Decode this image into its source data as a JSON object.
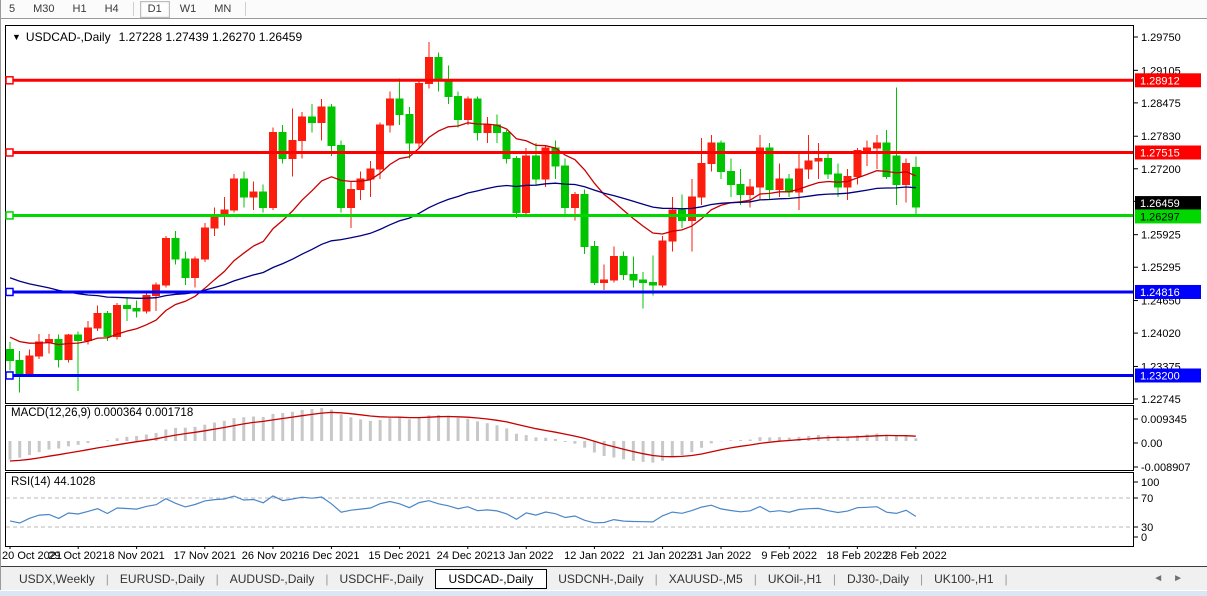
{
  "toolbar": {
    "groups": [
      [
        "5",
        "M30",
        "H1",
        "H4"
      ],
      [
        "D1",
        "W1",
        "MN"
      ]
    ],
    "active": "D1"
  },
  "chart": {
    "dropdown_icon": "▼",
    "title": "USDCAD-,Daily",
    "ohlc_values": "1.27228 1.27439 1.26270 1.26459"
  },
  "chart_data": {
    "type": "candlestick",
    "symbol": "USDCAD-",
    "timeframe": "Daily",
    "title": "USDCAD-,Daily 1.27228 1.27439 1.26270 1.26459",
    "current_bar": {
      "open": 1.27228,
      "high": 1.27439,
      "low": 1.2627,
      "close": 1.26459
    },
    "up_color": "#fb1d0e",
    "down_color": "#00c400",
    "candles": [
      [
        1.237,
        1.2385,
        1.233,
        1.2349
      ],
      [
        1.2349,
        1.2367,
        1.2287,
        1.2323
      ],
      [
        1.2323,
        1.237,
        1.232,
        1.2358
      ],
      [
        1.2358,
        1.24,
        1.2352,
        1.2385
      ],
      [
        1.2385,
        1.24,
        1.2363,
        1.239
      ],
      [
        1.239,
        1.2399,
        1.2335,
        1.2351
      ],
      [
        1.2351,
        1.24,
        1.2345,
        1.2398
      ],
      [
        1.2398,
        1.2405,
        1.229,
        1.2388
      ],
      [
        1.2388,
        1.2425,
        1.238,
        1.2412
      ],
      [
        1.2412,
        1.2455,
        1.2406,
        1.244
      ],
      [
        1.244,
        1.2445,
        1.2387,
        1.2395
      ],
      [
        1.2395,
        1.246,
        1.239,
        1.2455
      ],
      [
        1.2455,
        1.247,
        1.2425,
        1.245
      ],
      [
        1.245,
        1.2465,
        1.2432,
        1.2445
      ],
      [
        1.2445,
        1.248,
        1.244,
        1.2475
      ],
      [
        1.2475,
        1.25,
        1.2445,
        1.2495
      ],
      [
        1.2495,
        1.259,
        1.249,
        1.2585
      ],
      [
        1.2585,
        1.26,
        1.2535,
        1.2545
      ],
      [
        1.2545,
        1.256,
        1.2495,
        1.251
      ],
      [
        1.251,
        1.255,
        1.249,
        1.2545
      ],
      [
        1.2545,
        1.2615,
        1.254,
        1.2605
      ],
      [
        1.2605,
        1.2645,
        1.259,
        1.263
      ],
      [
        1.263,
        1.2665,
        1.261,
        1.264
      ],
      [
        1.264,
        1.271,
        1.2635,
        1.27
      ],
      [
        1.27,
        1.2715,
        1.2645,
        1.2665
      ],
      [
        1.2665,
        1.2695,
        1.264,
        1.2675
      ],
      [
        1.2675,
        1.269,
        1.2635,
        1.2645
      ],
      [
        1.2645,
        1.28,
        1.264,
        1.279
      ],
      [
        1.279,
        1.2805,
        1.273,
        1.274
      ],
      [
        1.274,
        1.2837,
        1.2705,
        1.2775
      ],
      [
        1.2775,
        1.283,
        1.274,
        1.282
      ],
      [
        1.282,
        1.2845,
        1.279,
        1.281
      ],
      [
        1.281,
        1.2855,
        1.2775,
        1.284
      ],
      [
        1.284,
        1.2845,
        1.2745,
        1.2765
      ],
      [
        1.2765,
        1.2775,
        1.2635,
        1.2645
      ],
      [
        1.2645,
        1.2695,
        1.2605,
        1.268
      ],
      [
        1.268,
        1.2715,
        1.266,
        1.27
      ],
      [
        1.27,
        1.2735,
        1.2665,
        1.272
      ],
      [
        1.272,
        1.281,
        1.27,
        1.2805
      ],
      [
        1.2805,
        1.287,
        1.279,
        1.2855
      ],
      [
        1.2855,
        1.2895,
        1.2805,
        1.2825
      ],
      [
        1.2825,
        1.284,
        1.274,
        1.277
      ],
      [
        1.277,
        1.289,
        1.276,
        1.2885
      ],
      [
        1.2885,
        1.2965,
        1.2875,
        1.2935
      ],
      [
        1.2935,
        1.2945,
        1.287,
        1.289
      ],
      [
        1.289,
        1.292,
        1.2845,
        1.286
      ],
      [
        1.286,
        1.287,
        1.28,
        1.2815
      ],
      [
        1.2815,
        1.286,
        1.2805,
        1.2855
      ],
      [
        1.2855,
        1.286,
        1.2775,
        1.279
      ],
      [
        1.279,
        1.282,
        1.277,
        1.2805
      ],
      [
        1.2805,
        1.2825,
        1.277,
        1.279
      ],
      [
        1.279,
        1.2795,
        1.273,
        1.274
      ],
      [
        1.274,
        1.2745,
        1.2625,
        1.2635
      ],
      [
        1.2635,
        1.276,
        1.263,
        1.2745
      ],
      [
        1.2745,
        1.277,
        1.269,
        1.27
      ],
      [
        1.27,
        1.2765,
        1.2685,
        1.276
      ],
      [
        1.276,
        1.2775,
        1.27,
        1.2725
      ],
      [
        1.2725,
        1.274,
        1.263,
        1.2645
      ],
      [
        1.2645,
        1.2675,
        1.262,
        1.267
      ],
      [
        1.267,
        1.268,
        1.2555,
        1.257
      ],
      [
        1.257,
        1.258,
        1.2495,
        1.25
      ],
      [
        1.25,
        1.2535,
        1.2485,
        1.2505
      ],
      [
        1.2505,
        1.257,
        1.25,
        1.255
      ],
      [
        1.255,
        1.256,
        1.2505,
        1.2515
      ],
      [
        1.2515,
        1.255,
        1.249,
        1.2505
      ],
      [
        1.2505,
        1.252,
        1.245,
        1.25
      ],
      [
        1.25,
        1.2552,
        1.2475,
        1.2495
      ],
      [
        1.2495,
        1.259,
        1.249,
        1.258
      ],
      [
        1.258,
        1.2665,
        1.256,
        1.264
      ],
      [
        1.264,
        1.267,
        1.2605,
        1.262
      ],
      [
        1.262,
        1.27,
        1.256,
        1.2665
      ],
      [
        1.2665,
        1.278,
        1.265,
        1.273
      ],
      [
        1.273,
        1.2785,
        1.2715,
        1.277
      ],
      [
        1.277,
        1.2775,
        1.27,
        1.2715
      ],
      [
        1.2715,
        1.274,
        1.2665,
        1.269
      ],
      [
        1.269,
        1.272,
        1.265,
        1.267
      ],
      [
        1.267,
        1.27,
        1.2645,
        1.2685
      ],
      [
        1.2685,
        1.2785,
        1.266,
        1.276
      ],
      [
        1.276,
        1.277,
        1.266,
        1.268
      ],
      [
        1.268,
        1.273,
        1.2665,
        1.27
      ],
      [
        1.27,
        1.271,
        1.2665,
        1.2675
      ],
      [
        1.2675,
        1.275,
        1.264,
        1.272
      ],
      [
        1.272,
        1.2785,
        1.27,
        1.2735
      ],
      [
        1.2735,
        1.277,
        1.27,
        1.274
      ],
      [
        1.274,
        1.275,
        1.27,
        1.271
      ],
      [
        1.271,
        1.273,
        1.2665,
        1.2685
      ],
      [
        1.2685,
        1.272,
        1.266,
        1.2705
      ],
      [
        1.2705,
        1.276,
        1.269,
        1.2755
      ],
      [
        1.2755,
        1.2775,
        1.2725,
        1.276
      ],
      [
        1.276,
        1.2785,
        1.272,
        1.277
      ],
      [
        1.277,
        1.2795,
        1.27,
        1.2705
      ],
      [
        1.2745,
        1.2877,
        1.265,
        1.269
      ],
      [
        1.269,
        1.274,
        1.2655,
        1.273
      ],
      [
        1.27228,
        1.27439,
        1.2627,
        1.26459
      ]
    ],
    "moving_averages": [
      {
        "name": "ma-fast",
        "color": "#c80000",
        "period": 16,
        "seed": 1.24
      },
      {
        "name": "ma-slow",
        "color": "#000080",
        "period": 55,
        "seed": 1.2515
      }
    ],
    "hlines": [
      {
        "price": 1.28912,
        "label": "1.28912",
        "color": "#ff0000",
        "text": "#ffffff"
      },
      {
        "price": 1.27515,
        "label": "1.27515",
        "color": "#ff0000",
        "text": "#ffffff"
      },
      {
        "price": 1.26297,
        "label": "1.26297",
        "color": "#00d800",
        "text": "#000000"
      },
      {
        "price": 1.24816,
        "label": "1.24816",
        "color": "#0000ff",
        "text": "#ffffff"
      },
      {
        "price": 1.232,
        "label": "1.23200",
        "color": "#0000ff",
        "text": "#ffffff"
      }
    ],
    "current_price_label": {
      "label": "1.26459",
      "price": 1.26459,
      "bg": "#000000",
      "text": "#ffffff"
    },
    "price_axis_ticks": [
      "1.29750",
      "1.29105",
      "1.28475",
      "1.27830",
      "1.27200",
      "1.26570",
      "1.25925",
      "1.25295",
      "1.24650",
      "1.24020",
      "1.23375",
      "1.22745"
    ],
    "date_labels": [
      {
        "text": "20 Oct 2021",
        "bar": 0
      },
      {
        "text": "29 Oct 2021",
        "bar": 7
      },
      {
        "text": "8 Nov 2021",
        "bar": 13
      },
      {
        "text": "17 Nov 2021",
        "bar": 20
      },
      {
        "text": "26 Nov 2021",
        "bar": 27
      },
      {
        "text": "6 Dec 2021",
        "bar": 33
      },
      {
        "text": "15 Dec 2021",
        "bar": 40
      },
      {
        "text": "24 Dec 2021",
        "bar": 47
      },
      {
        "text": "3 Jan 2022",
        "bar": 53
      },
      {
        "text": "12 Jan 2022",
        "bar": 60
      },
      {
        "text": "21 Jan 2022",
        "bar": 67
      },
      {
        "text": "31 Jan 2022",
        "bar": 73
      },
      {
        "text": "9 Feb 2022",
        "bar": 80
      },
      {
        "text": "18 Feb 2022",
        "bar": 87
      },
      {
        "text": "28 Feb 2022",
        "bar": 93
      }
    ],
    "indicators": [
      {
        "name": "MACD",
        "label": "MACD(12,26,9) 0.000364 0.001718",
        "params": [
          12,
          26,
          9
        ],
        "values_text": [
          "0.000364",
          "0.001718"
        ],
        "axis_ticks": [
          "0.009345",
          "0.00",
          "-0.008907"
        ],
        "histogram_color": "#c8c8c8",
        "signal_color": "#c80000"
      },
      {
        "name": "RSI",
        "label": "RSI(14) 44.1028",
        "params": [
          14
        ],
        "value_text": "44.1028",
        "axis_ticks": [
          "100",
          "70",
          "30",
          "0"
        ],
        "levels": [
          70,
          30
        ],
        "line_color": "#4a86c8"
      }
    ]
  },
  "tabs": {
    "items": [
      "USDX,Weekly",
      "EURUSD-,Daily",
      "AUDUSD-,Daily",
      "USDCHF-,Daily",
      "USDCAD-,Daily",
      "USDCNH-,Daily",
      "XAUUSD-,M5",
      "UKOil-,H1",
      "DJ30-,Daily",
      "UK100-,H1"
    ],
    "active": "USDCAD-,Daily",
    "scroll_left_icon": "◄",
    "scroll_right_icon": "►"
  }
}
